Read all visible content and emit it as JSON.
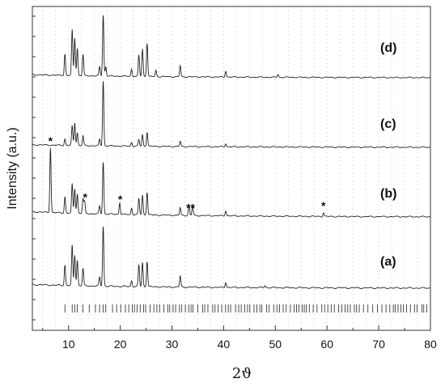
{
  "chart_data": {
    "type": "line",
    "xlabel": "2ϑ",
    "ylabel": "Intensity (a.u.)",
    "xlim": [
      3,
      80
    ],
    "x_ticks": [
      "10",
      "20",
      "30",
      "40",
      "50",
      "60",
      "70",
      "80"
    ],
    "grid": "dotted vertical",
    "series": [
      {
        "name": "(d)",
        "baseline": 0.05,
        "peaks": [
          [
            9.3,
            0.35
          ],
          [
            10.7,
            0.75
          ],
          [
            11.2,
            0.62
          ],
          [
            11.7,
            0.45
          ],
          [
            12.8,
            0.35
          ],
          [
            16.0,
            0.15
          ],
          [
            16.7,
            1.0
          ],
          [
            17.2,
            0.15
          ],
          [
            22.2,
            0.12
          ],
          [
            23.6,
            0.35
          ],
          [
            24.3,
            0.45
          ],
          [
            25.2,
            0.55
          ],
          [
            26.9,
            0.1
          ],
          [
            31.6,
            0.18
          ],
          [
            40.4,
            0.1
          ],
          [
            50.5,
            0.05
          ]
        ]
      },
      {
        "name": "(c)",
        "baseline": 0.04,
        "peaks": [
          [
            9.3,
            0.1
          ],
          [
            10.7,
            0.3
          ],
          [
            11.2,
            0.35
          ],
          [
            11.7,
            0.2
          ],
          [
            12.8,
            0.15
          ],
          [
            16.0,
            0.1
          ],
          [
            16.7,
            1.0
          ],
          [
            22.2,
            0.06
          ],
          [
            23.6,
            0.1
          ],
          [
            24.3,
            0.18
          ],
          [
            25.2,
            0.22
          ],
          [
            31.6,
            0.08
          ],
          [
            40.4,
            0.05
          ]
        ]
      },
      {
        "name": "(b)",
        "baseline": 0.08,
        "peaks": [
          [
            6.5,
            1.0
          ],
          [
            9.3,
            0.25
          ],
          [
            10.7,
            0.45
          ],
          [
            11.2,
            0.38
          ],
          [
            11.7,
            0.3
          ],
          [
            12.8,
            0.22
          ],
          [
            13.1,
            0.18
          ],
          [
            16.0,
            0.12
          ],
          [
            16.7,
            0.8
          ],
          [
            19.9,
            0.18
          ],
          [
            22.2,
            0.1
          ],
          [
            23.6,
            0.25
          ],
          [
            24.3,
            0.3
          ],
          [
            25.2,
            0.35
          ],
          [
            31.6,
            0.12
          ],
          [
            33.3,
            0.15
          ],
          [
            34.0,
            0.15
          ],
          [
            40.4,
            0.08
          ],
          [
            59.3,
            0.06
          ]
        ]
      },
      {
        "name": "(a)",
        "baseline": 0.05,
        "peaks": [
          [
            9.3,
            0.28
          ],
          [
            10.7,
            0.55
          ],
          [
            11.2,
            0.42
          ],
          [
            11.7,
            0.35
          ],
          [
            12.8,
            0.24
          ],
          [
            16.0,
            0.12
          ],
          [
            16.7,
            0.82
          ],
          [
            22.2,
            0.08
          ],
          [
            23.6,
            0.3
          ],
          [
            24.3,
            0.33
          ],
          [
            25.2,
            0.35
          ],
          [
            31.6,
            0.15
          ],
          [
            40.4,
            0.07
          ],
          [
            48.0,
            0.03
          ]
        ]
      }
    ],
    "annotations": [
      {
        "series": "(b)",
        "text": "*",
        "x": 6.5
      },
      {
        "series": "(b)",
        "text": "*",
        "x": 13.2
      },
      {
        "series": "(b)",
        "text": "*",
        "x": 20.0
      },
      {
        "series": "(b)",
        "text": "**",
        "x": 33.6
      },
      {
        "series": "(b)",
        "text": "*",
        "x": 59.3
      }
    ],
    "reference_ticks_note": "Reflection markers below pattern (a)"
  }
}
